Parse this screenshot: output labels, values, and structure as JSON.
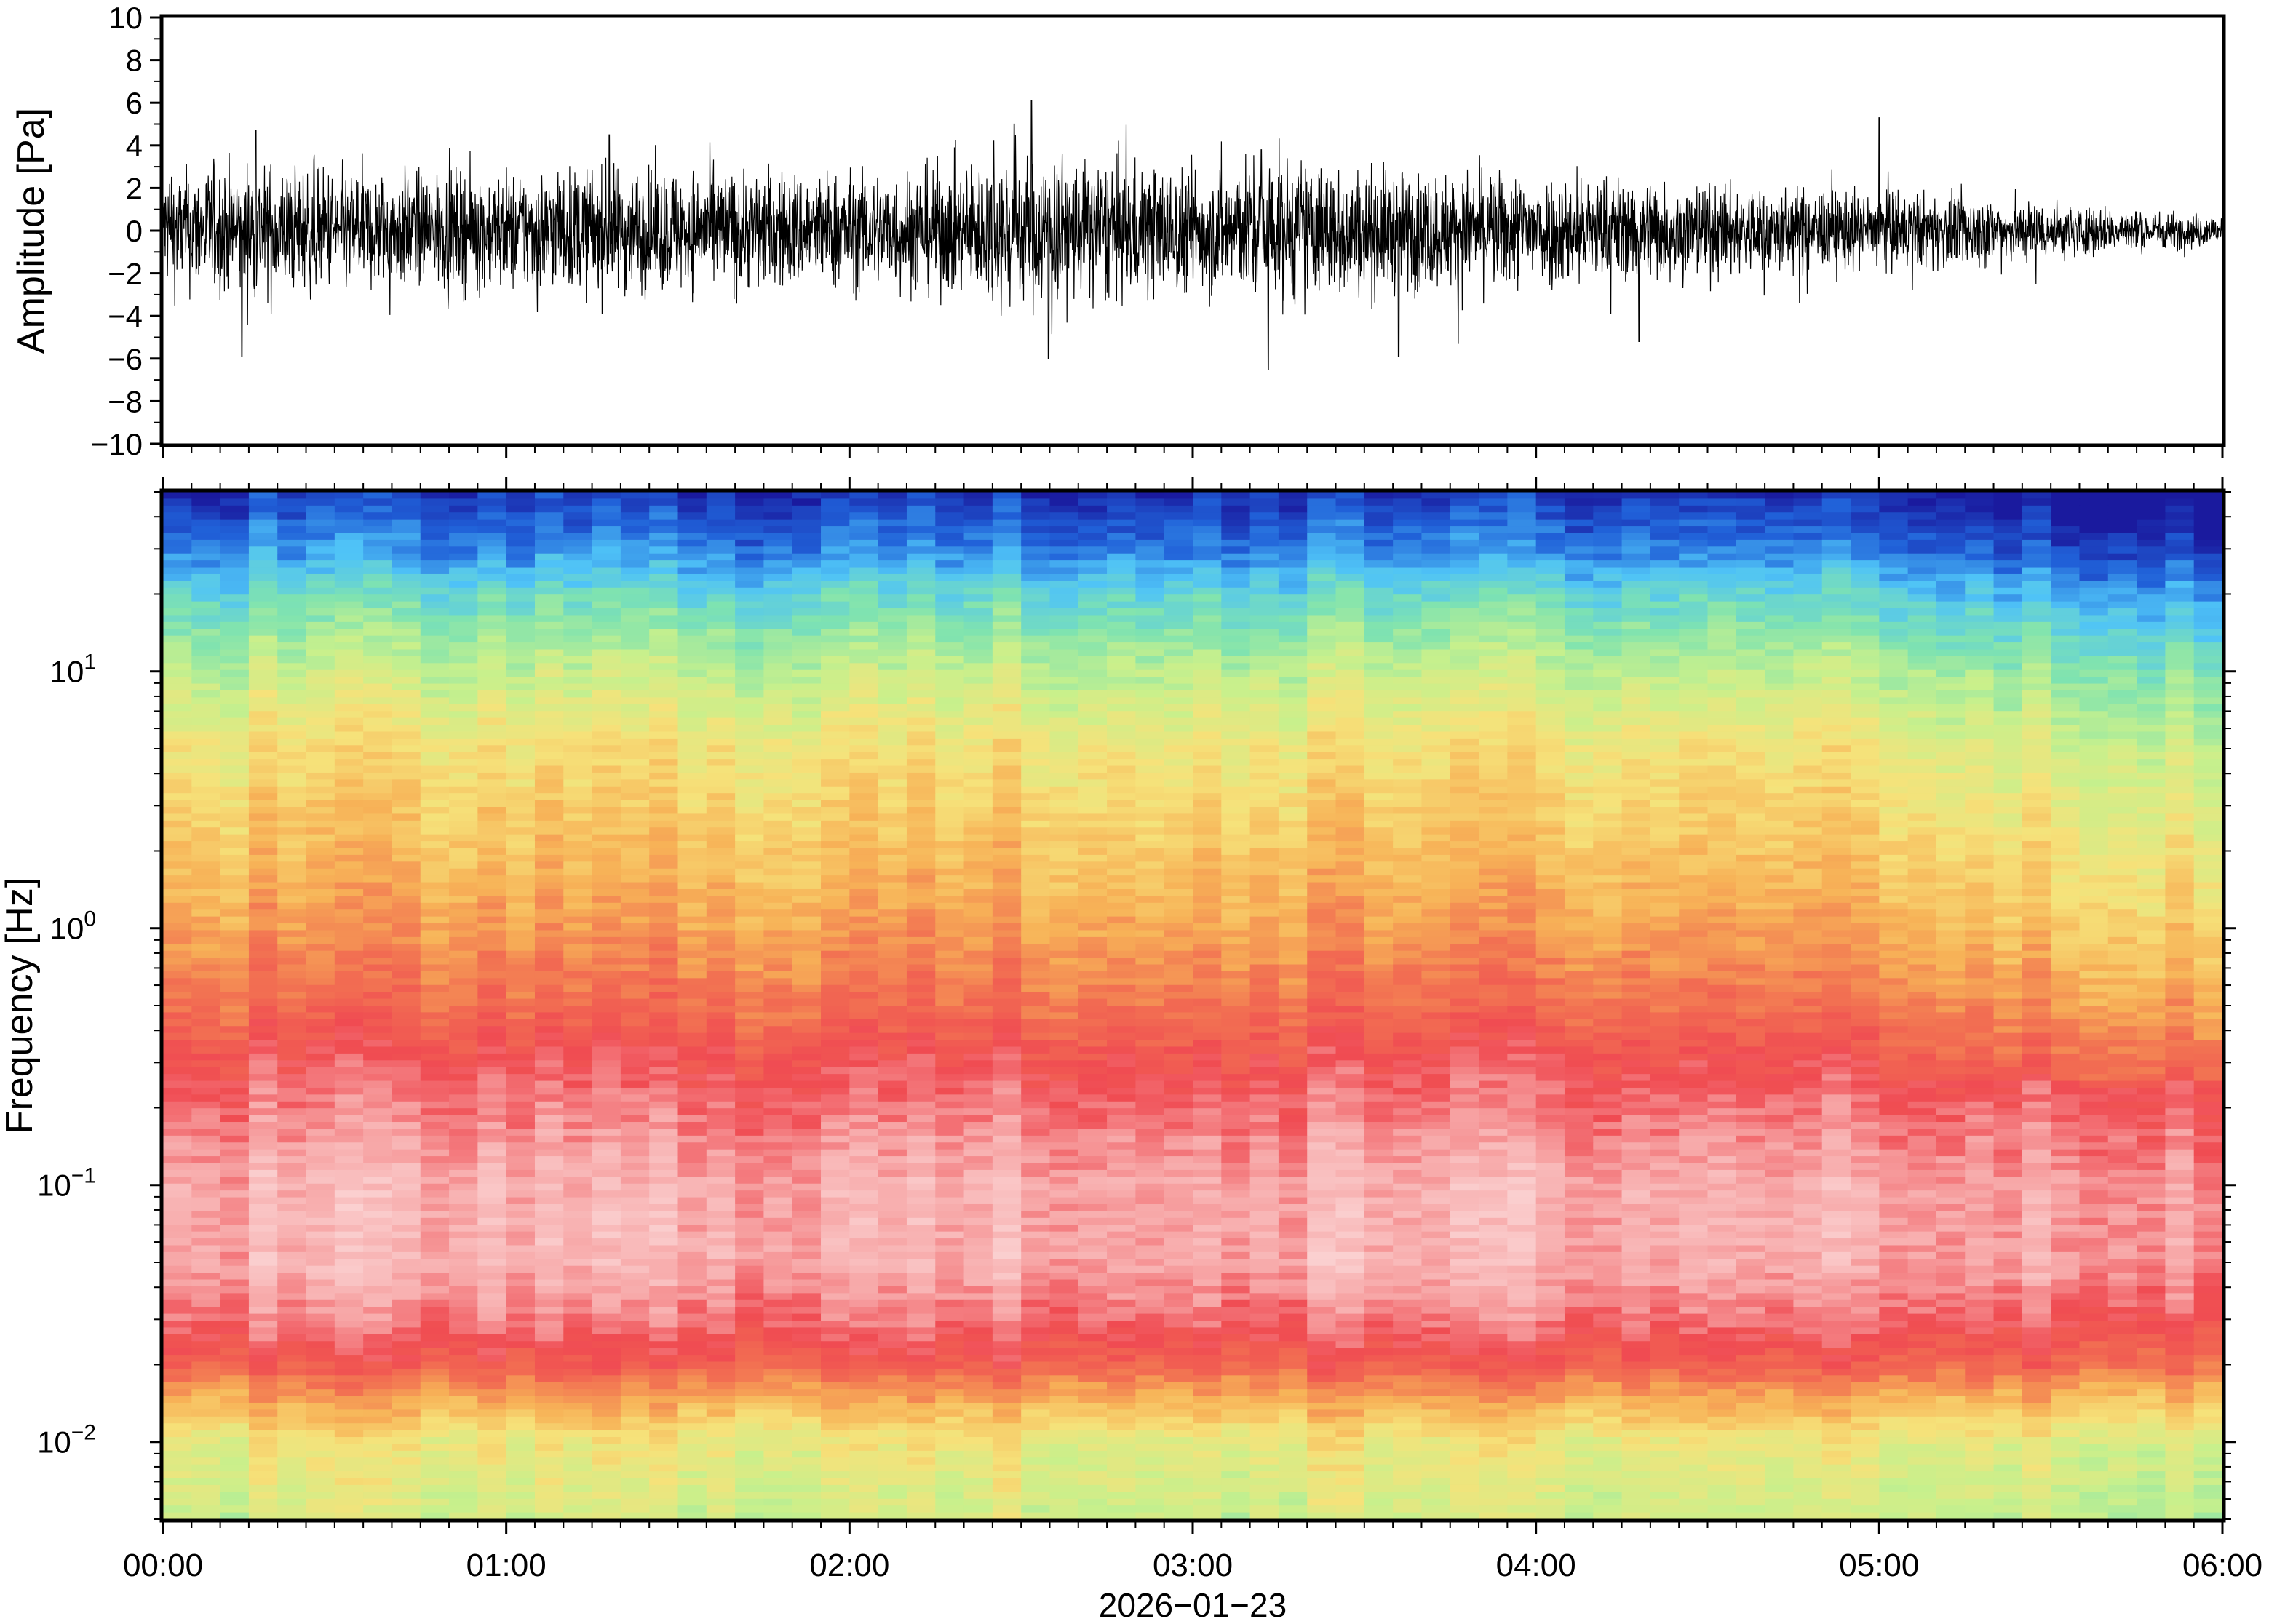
{
  "chart_data": [
    {
      "type": "line",
      "panel": "waveform",
      "ylabel": "Amplitude [Pa]",
      "ylim": [
        -10,
        10
      ],
      "yticks": [
        10,
        8,
        6,
        4,
        2,
        0,
        -2,
        -4,
        -6,
        -8,
        -10
      ],
      "ytick_labels": [
        "10",
        "8",
        "6",
        "4",
        "2",
        "0",
        "−2",
        "−4",
        "−6",
        "−8",
        "−10"
      ],
      "x_start": "00:00",
      "x_end": "06:00",
      "series": [
        {
          "color": "#000000",
          "envelope_x_hours": [
            0.0,
            0.25,
            0.5,
            0.75,
            1.0,
            1.25,
            1.5,
            1.75,
            2.0,
            2.25,
            2.5,
            2.75,
            3.0,
            3.25,
            3.5,
            3.75,
            4.0,
            4.25,
            4.5,
            4.75,
            5.0,
            5.25,
            5.5,
            5.75,
            6.0
          ],
          "envelope_pa": [
            2.2,
            2.6,
            2.3,
            2.2,
            2.3,
            2.4,
            2.3,
            2.3,
            2.2,
            2.4,
            2.9,
            2.7,
            2.3,
            2.8,
            2.4,
            2.2,
            2.2,
            2.0,
            1.8,
            1.6,
            1.5,
            1.4,
            1.1,
            0.8,
            0.6
          ],
          "peaks": [
            {
              "x_hours": 0.23,
              "y": -5.9
            },
            {
              "x_hours": 0.27,
              "y": 4.7
            },
            {
              "x_hours": 1.3,
              "y": 4.5
            },
            {
              "x_hours": 2.42,
              "y": 4.2
            },
            {
              "x_hours": 2.48,
              "y": 5.0
            },
            {
              "x_hours": 2.53,
              "y": 6.1
            },
            {
              "x_hours": 2.58,
              "y": -6.0
            },
            {
              "x_hours": 3.22,
              "y": -6.5
            },
            {
              "x_hours": 3.2,
              "y": 3.8
            },
            {
              "x_hours": 3.6,
              "y": -5.9
            },
            {
              "x_hours": 4.3,
              "y": -5.2
            },
            {
              "x_hours": 5.0,
              "y": 5.3
            }
          ]
        }
      ]
    },
    {
      "type": "heatmap",
      "panel": "spectrogram",
      "ylabel": "Frequency [Hz]",
      "xlabel": "2026−01−23",
      "y_scale": "log",
      "ylim": [
        0.005,
        50
      ],
      "yticks": [
        {
          "value": 10,
          "base": "10",
          "exp": "1"
        },
        {
          "value": 1,
          "base": "10",
          "exp": "0"
        },
        {
          "value": 0.1,
          "base": "10",
          "exp": "−1"
        },
        {
          "value": 0.01,
          "base": "10",
          "exp": "−2"
        }
      ],
      "x_tick_labels": [
        "00:00",
        "01:00",
        "02:00",
        "03:00",
        "04:00",
        "05:00",
        "06:00"
      ],
      "colormap": [
        "#1a1a9e",
        "#2060d8",
        "#4fc3f7",
        "#7fe3b0",
        "#c8f08c",
        "#f6e27a",
        "#f7b257",
        "#f27152",
        "#f04b52",
        "#f7a7a7",
        "#fbd5d5"
      ],
      "time_columns": 72,
      "power_profile": {
        "frequency_hz": [
          50,
          30,
          20,
          10,
          5,
          2,
          1,
          0.5,
          0.3,
          0.2,
          0.1,
          0.05,
          0.03,
          0.02,
          0.015,
          0.01,
          0.005
        ],
        "level": [
          0.04,
          0.14,
          0.26,
          0.4,
          0.5,
          0.57,
          0.63,
          0.71,
          0.8,
          0.85,
          0.92,
          0.92,
          0.85,
          0.75,
          0.62,
          0.48,
          0.42
        ]
      }
    }
  ]
}
